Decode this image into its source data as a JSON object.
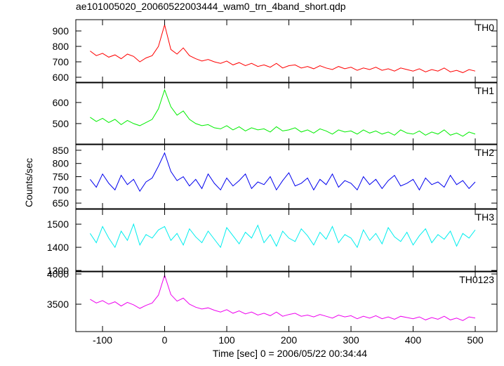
{
  "chart_data": {
    "type": "line",
    "title": "ae101005020_20060522003444_wam0_trn_4band_short.qdp",
    "xlabel": "Time [sec] 0 = 2006/05/22 00:34:44",
    "ylabel": "Counts/sec",
    "xlim": [
      -143,
      535
    ],
    "xticks": [
      -100,
      0,
      100,
      200,
      300,
      400,
      500
    ],
    "x": [
      -120,
      -110,
      -100,
      -90,
      -80,
      -70,
      -60,
      -50,
      -40,
      -30,
      -20,
      -10,
      0,
      10,
      20,
      30,
      40,
      50,
      60,
      70,
      80,
      90,
      100,
      110,
      120,
      130,
      140,
      150,
      160,
      170,
      180,
      190,
      200,
      210,
      220,
      230,
      240,
      250,
      260,
      270,
      280,
      290,
      300,
      310,
      320,
      330,
      340,
      350,
      360,
      370,
      380,
      390,
      400,
      410,
      420,
      430,
      440,
      450,
      460,
      470,
      480,
      490,
      500
    ],
    "panels": [
      {
        "label": "TH0",
        "color": "#ff0000",
        "ylim": [
          568,
          973
        ],
        "yticks": [
          600,
          700,
          800,
          900
        ],
        "values": [
          770,
          740,
          755,
          730,
          745,
          720,
          750,
          735,
          700,
          725,
          740,
          800,
          940,
          780,
          750,
          790,
          740,
          720,
          705,
          715,
          700,
          690,
          705,
          680,
          695,
          675,
          690,
          670,
          680,
          665,
          690,
          660,
          675,
          680,
          660,
          670,
          655,
          675,
          660,
          650,
          670,
          655,
          665,
          645,
          660,
          650,
          665,
          645,
          655,
          640,
          660,
          650,
          640,
          655,
          635,
          650,
          640,
          660,
          635,
          645,
          630,
          650,
          640
        ]
      },
      {
        "label": "TH1",
        "color": "#00ee00",
        "ylim": [
          403,
          693
        ],
        "yticks": [
          500,
          600
        ],
        "values": [
          530,
          510,
          525,
          505,
          520,
          495,
          515,
          500,
          490,
          505,
          520,
          570,
          660,
          580,
          540,
          560,
          520,
          500,
          490,
          495,
          480,
          475,
          490,
          470,
          485,
          465,
          480,
          470,
          475,
          460,
          485,
          465,
          470,
          480,
          460,
          470,
          455,
          475,
          465,
          450,
          470,
          460,
          465,
          450,
          470,
          455,
          465,
          450,
          460,
          445,
          470,
          455,
          450,
          465,
          445,
          460,
          450,
          470,
          445,
          455,
          440,
          460,
          450
        ]
      },
      {
        "label": "TH2",
        "color": "#0000ee",
        "ylim": [
          629,
          871
        ],
        "yticks": [
          650,
          700,
          750,
          800,
          850
        ],
        "values": [
          740,
          710,
          760,
          725,
          700,
          755,
          720,
          740,
          695,
          730,
          745,
          790,
          840,
          770,
          735,
          750,
          715,
          740,
          705,
          760,
          725,
          700,
          745,
          715,
          735,
          760,
          705,
          730,
          720,
          750,
          700,
          735,
          765,
          715,
          725,
          745,
          700,
          740,
          720,
          760,
          710,
          735,
          725,
          700,
          750,
          720,
          740,
          705,
          735,
          755,
          715,
          725,
          740,
          700,
          745,
          720,
          730,
          710,
          755,
          720,
          735,
          705,
          730
        ]
      },
      {
        "label": "TH3",
        "color": "#00eeee",
        "ylim": [
          1297,
          1564
        ],
        "yticks": [
          1300,
          1400,
          1500
        ],
        "values": [
          1460,
          1420,
          1490,
          1440,
          1400,
          1470,
          1430,
          1500,
          1410,
          1455,
          1440,
          1475,
          1490,
          1430,
          1460,
          1410,
          1480,
          1445,
          1420,
          1470,
          1435,
          1400,
          1485,
          1450,
          1415,
          1465,
          1440,
          1495,
          1420,
          1455,
          1405,
          1470,
          1440,
          1425,
          1480,
          1450,
          1410,
          1465,
          1435,
          1490,
          1420,
          1455,
          1440,
          1400,
          1475,
          1430,
          1460,
          1415,
          1485,
          1445,
          1425,
          1465,
          1410,
          1450,
          1480,
          1420,
          1455,
          1435,
          1470,
          1405,
          1460,
          1440,
          1475
        ]
      },
      {
        "label": "TH0123",
        "color": "#ee00ee",
        "ylim": [
          3047,
          4035
        ],
        "yticks": [
          3500,
          4000
        ],
        "values": [
          3580,
          3520,
          3560,
          3500,
          3540,
          3470,
          3530,
          3490,
          3430,
          3480,
          3520,
          3650,
          3980,
          3660,
          3550,
          3600,
          3500,
          3450,
          3420,
          3440,
          3400,
          3370,
          3410,
          3350,
          3390,
          3340,
          3370,
          3320,
          3350,
          3310,
          3370,
          3300,
          3330,
          3350,
          3300,
          3320,
          3290,
          3330,
          3300,
          3270,
          3320,
          3290,
          3310,
          3260,
          3300,
          3270,
          3310,
          3260,
          3290,
          3250,
          3300,
          3280,
          3260,
          3290,
          3240,
          3280,
          3250,
          3300,
          3240,
          3270,
          3230,
          3290,
          3270
        ]
      }
    ]
  }
}
